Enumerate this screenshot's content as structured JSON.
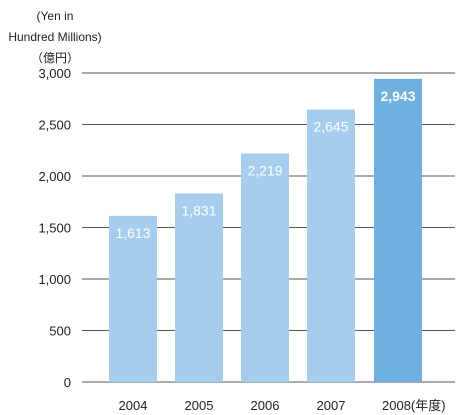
{
  "chart_data": {
    "type": "bar",
    "ylabel_lines": [
      "(Yen in",
      "Hundred Millions)",
      "（億円）"
    ],
    "categories": [
      "2004",
      "2005",
      "2006",
      "2007",
      "2008"
    ],
    "x_unit_suffix": "(年度)",
    "values": [
      1613,
      1831,
      2219,
      2645,
      2943
    ],
    "value_labels": [
      "1,613",
      "1,831",
      "2,219",
      "2,645",
      "2,943"
    ],
    "highlight_index": 4,
    "ylim": [
      0,
      3000
    ],
    "yticks": [
      0,
      500,
      1000,
      1500,
      2000,
      2500,
      3000
    ],
    "ytick_labels": [
      "0",
      "500",
      "1,000",
      "1,500",
      "2,000",
      "2,500",
      "3,000"
    ],
    "grid": true,
    "colors": {
      "bar": "#a6cdee",
      "bar_highlight": "#6fb0e3",
      "grid": "#555555",
      "text": "#222222",
      "label": "#ffffff"
    }
  }
}
